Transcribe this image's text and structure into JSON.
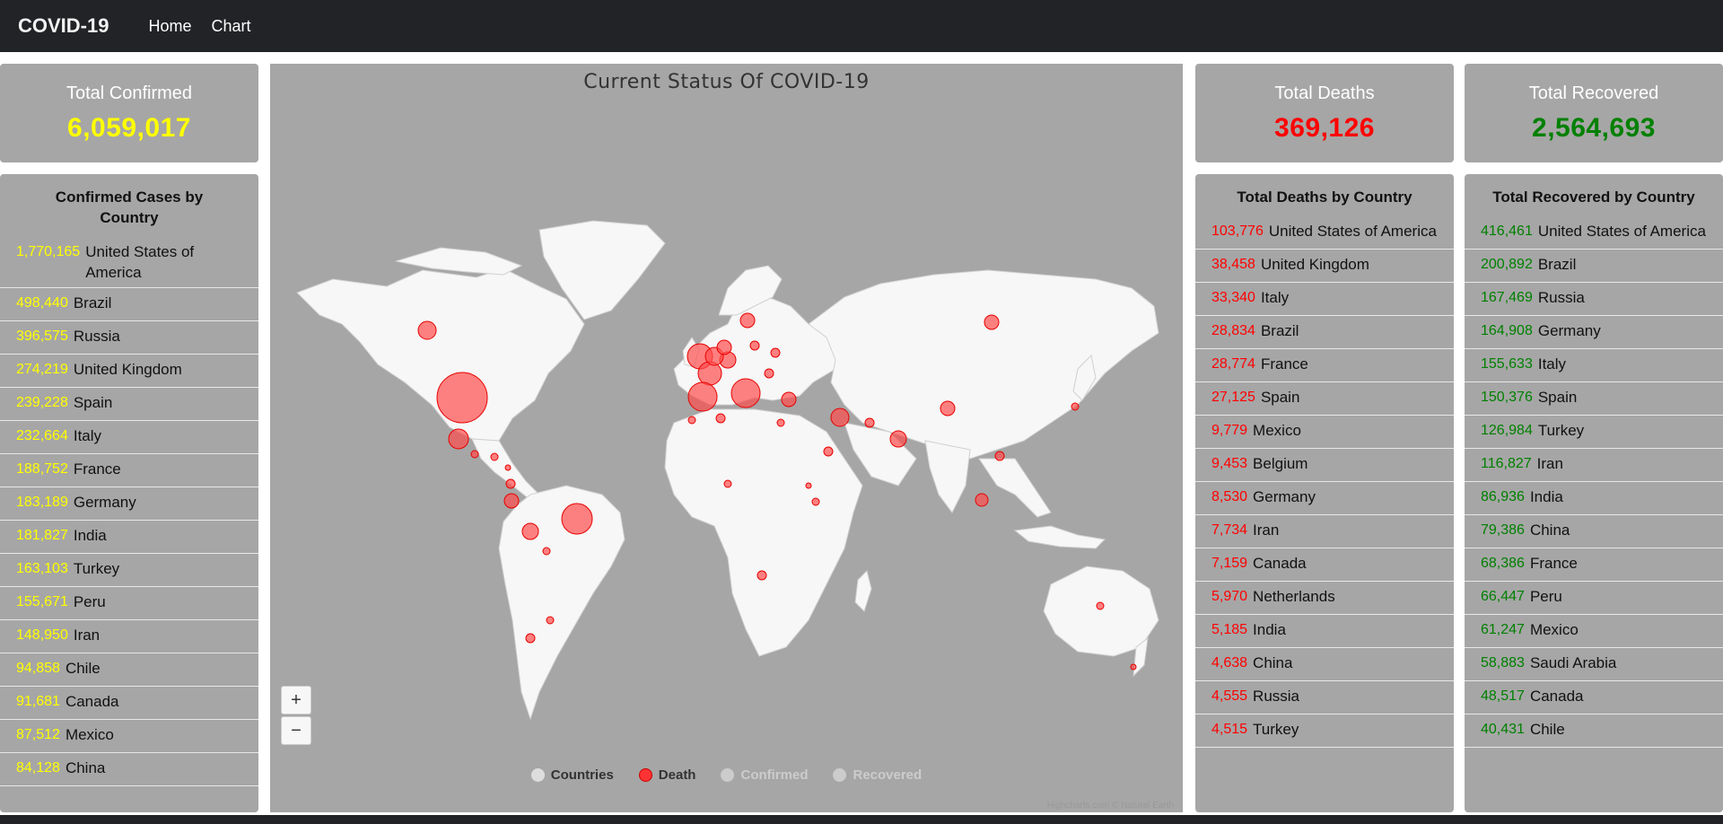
{
  "nav": {
    "brand": "COVID-19",
    "links": [
      "Home",
      "Chart"
    ]
  },
  "totals": {
    "confirmed": {
      "title": "Total Confirmed",
      "value": "6,059,017",
      "color": "#ffff00"
    },
    "deaths": {
      "title": "Total Deaths",
      "value": "369,126",
      "color": "#ff0000"
    },
    "recovered": {
      "title": "Total Recovered",
      "value": "2,564,693",
      "color": "#008000"
    }
  },
  "confirmed_list": {
    "title": "Confirmed Cases by Country",
    "items": [
      {
        "value": "1,770,165",
        "country": "United States of America"
      },
      {
        "value": "498,440",
        "country": "Brazil"
      },
      {
        "value": "396,575",
        "country": "Russia"
      },
      {
        "value": "274,219",
        "country": "United Kingdom"
      },
      {
        "value": "239,228",
        "country": "Spain"
      },
      {
        "value": "232,664",
        "country": "Italy"
      },
      {
        "value": "188,752",
        "country": "France"
      },
      {
        "value": "183,189",
        "country": "Germany"
      },
      {
        "value": "181,827",
        "country": "India"
      },
      {
        "value": "163,103",
        "country": "Turkey"
      },
      {
        "value": "155,671",
        "country": "Peru"
      },
      {
        "value": "148,950",
        "country": "Iran"
      },
      {
        "value": "94,858",
        "country": "Chile"
      },
      {
        "value": "91,681",
        "country": "Canada"
      },
      {
        "value": "87,512",
        "country": "Mexico"
      },
      {
        "value": "84,128",
        "country": "China"
      }
    ]
  },
  "deaths_list": {
    "title": "Total Deaths by Country",
    "items": [
      {
        "value": "103,776",
        "country": "United States of America"
      },
      {
        "value": "38,458",
        "country": "United Kingdom"
      },
      {
        "value": "33,340",
        "country": "Italy"
      },
      {
        "value": "28,834",
        "country": "Brazil"
      },
      {
        "value": "28,774",
        "country": "France"
      },
      {
        "value": "27,125",
        "country": "Spain"
      },
      {
        "value": "9,779",
        "country": "Mexico"
      },
      {
        "value": "9,453",
        "country": "Belgium"
      },
      {
        "value": "8,530",
        "country": "Germany"
      },
      {
        "value": "7,734",
        "country": "Iran"
      },
      {
        "value": "7,159",
        "country": "Canada"
      },
      {
        "value": "5,970",
        "country": "Netherlands"
      },
      {
        "value": "5,185",
        "country": "India"
      },
      {
        "value": "4,638",
        "country": "China"
      },
      {
        "value": "4,555",
        "country": "Russia"
      },
      {
        "value": "4,515",
        "country": "Turkey"
      }
    ]
  },
  "recovered_list": {
    "title": "Total Recovered by Country",
    "items": [
      {
        "value": "416,461",
        "country": "United States of America"
      },
      {
        "value": "200,892",
        "country": "Brazil"
      },
      {
        "value": "167,469",
        "country": "Russia"
      },
      {
        "value": "164,908",
        "country": "Germany"
      },
      {
        "value": "155,633",
        "country": "Italy"
      },
      {
        "value": "150,376",
        "country": "Spain"
      },
      {
        "value": "126,984",
        "country": "Turkey"
      },
      {
        "value": "116,827",
        "country": "Iran"
      },
      {
        "value": "86,936",
        "country": "India"
      },
      {
        "value": "79,386",
        "country": "China"
      },
      {
        "value": "68,386",
        "country": "France"
      },
      {
        "value": "66,447",
        "country": "Peru"
      },
      {
        "value": "61,247",
        "country": "Mexico"
      },
      {
        "value": "58,883",
        "country": "Saudi Arabia"
      },
      {
        "value": "48,517",
        "country": "Canada"
      },
      {
        "value": "40,431",
        "country": "Chile"
      }
    ]
  },
  "map": {
    "title": "Current Status Of COVID-19",
    "zoom_in": "+",
    "zoom_out": "−",
    "credits": "Highcharts.com © Natural Earth",
    "legend": [
      {
        "label": "Countries",
        "color": "#dddddd",
        "active": true
      },
      {
        "label": "Death",
        "color": "#ff3333",
        "active": true
      },
      {
        "label": "Confirmed",
        "color": "#cccccc",
        "active": false
      },
      {
        "label": "Recovered",
        "color": "#cccccc",
        "active": false
      }
    ],
    "bubble_color": "#ff4d4d"
  }
}
